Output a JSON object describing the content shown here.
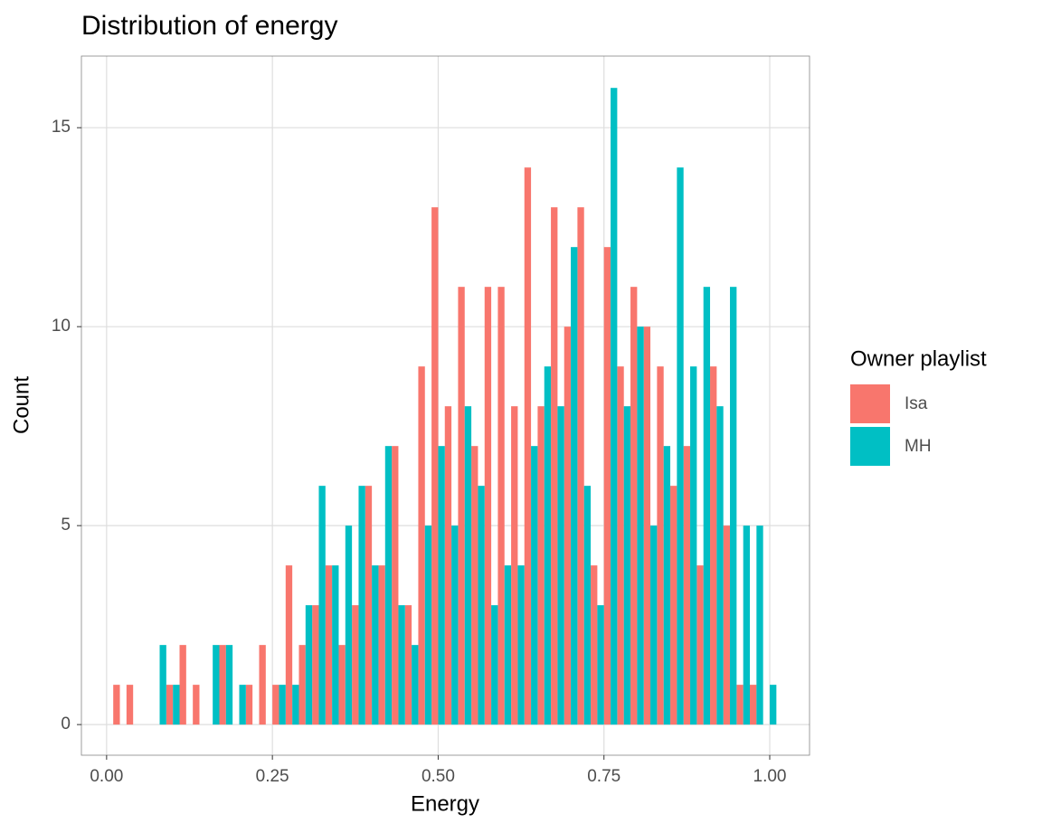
{
  "chart_data": {
    "type": "histogram",
    "title": "Distribution of energy",
    "x_label": "Energy",
    "y_label": "Count",
    "legend_title": "Owner playlist",
    "legend_position": "right",
    "grid": true,
    "bins": [
      0.01,
      0.03,
      0.05,
      0.07,
      0.09,
      0.11,
      0.13,
      0.15,
      0.17,
      0.19,
      0.21,
      0.23,
      0.25,
      0.27,
      0.29,
      0.31,
      0.33,
      0.35,
      0.37,
      0.39,
      0.41,
      0.43,
      0.45,
      0.47,
      0.49,
      0.51,
      0.53,
      0.55,
      0.57,
      0.59,
      0.61,
      0.63,
      0.65,
      0.67,
      0.69,
      0.71,
      0.73,
      0.75,
      0.77,
      0.79,
      0.81,
      0.83,
      0.85,
      0.87,
      0.89,
      0.91,
      0.93,
      0.95,
      0.97,
      0.99,
      1.01
    ],
    "series": [
      {
        "name": "Isa",
        "color": "#f8766d",
        "values": [
          1,
          1,
          0,
          0,
          1,
          2,
          1,
          0,
          2,
          0,
          1,
          2,
          1,
          4,
          2,
          3,
          4,
          2,
          3,
          6,
          4,
          7,
          3,
          9,
          13,
          8,
          11,
          7,
          11,
          11,
          8,
          14,
          8,
          13,
          10,
          13,
          4,
          12,
          9,
          11,
          10,
          9,
          6,
          7,
          4,
          9,
          5,
          1,
          1,
          0
        ]
      },
      {
        "name": "MH",
        "color": "#00bfc4",
        "values": [
          0,
          0,
          0,
          2,
          1,
          0,
          0,
          2,
          2,
          1,
          0,
          0,
          1,
          1,
          3,
          6,
          4,
          5,
          6,
          4,
          7,
          3,
          2,
          5,
          7,
          5,
          8,
          6,
          3,
          4,
          4,
          7,
          9,
          8,
          12,
          6,
          3,
          16,
          8,
          10,
          5,
          7,
          14,
          9,
          11,
          8,
          11,
          5,
          5,
          1
        ]
      }
    ],
    "xlim": [
      -0.038,
      1.06
    ],
    "ylim": [
      -0.77,
      16.8
    ],
    "xticks": [
      {
        "value": 0,
        "label": "0.00"
      },
      {
        "value": 0.25,
        "label": "0.25"
      },
      {
        "value": 0.5,
        "label": "0.50"
      },
      {
        "value": 0.75,
        "label": "0.75"
      },
      {
        "value": 1,
        "label": "1.00"
      }
    ],
    "yticks": [
      0,
      5,
      10,
      15
    ]
  }
}
